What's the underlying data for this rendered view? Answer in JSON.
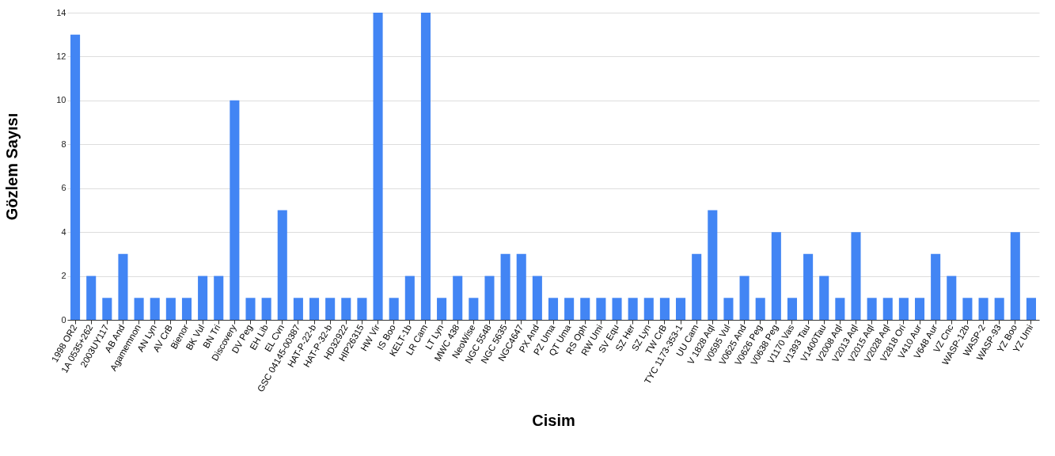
{
  "chart_data": {
    "type": "bar",
    "xlabel": "Cisim",
    "ylabel": "Gözlem Sayısı",
    "categories": [
      "1998 OR2",
      "1A 0535+262",
      "2003UY117",
      "AB And",
      "Agamemnon",
      "AN Lyn",
      "AV CrB",
      "Bienor",
      "BK Vul",
      "BN Tri",
      "Discovery",
      "DV Peg",
      "EH Lib",
      "EL Cvn",
      "GSC 04145-00387",
      "HAT-P-22-b",
      "HAT-P-32-b",
      "HD32922",
      "HIP26315",
      "HW Vir",
      "IS Boo",
      "KELT-1b",
      "LR Cam",
      "LT Lyn",
      "MWC 438",
      "NeoWise",
      "NGC 5548",
      "NGC 5635",
      "NGC4647",
      "PX And",
      "PZ Uma",
      "QT Uma",
      "RS Oph",
      "RW Umi",
      "SV Equ",
      "SZ Her",
      "SZ Lyn",
      "TW CrB",
      "TYC 1173-353-1",
      "UU Cam",
      "V 1828 Aql",
      "V0595 Vul",
      "V0625 And",
      "V0626 Peg",
      "V0638 Peg",
      "V1170 Vas",
      "V1393 Tau",
      "V1400Tau",
      "V2008 Aql",
      "V2013 Aql",
      "V2015 Aql",
      "V2028 Aql",
      "V2818 Ori",
      "V410 Aur",
      "V648 Aur",
      "VZ Cnc",
      "WASP-12b",
      "WASP-2",
      "WASP-93",
      "YZ Boo",
      "YZ Umi"
    ],
    "values": [
      13,
      2,
      1,
      3,
      1,
      1,
      1,
      1,
      2,
      2,
      10,
      1,
      1,
      5,
      1,
      1,
      1,
      1,
      1,
      14,
      1,
      2,
      14,
      1,
      2,
      1,
      2,
      3,
      3,
      2,
      1,
      1,
      1,
      1,
      1,
      1,
      1,
      1,
      1,
      3,
      5,
      1,
      2,
      1,
      4,
      1,
      3,
      2,
      1,
      4,
      1,
      1,
      1,
      1,
      3,
      2,
      1,
      1,
      1,
      4,
      1
    ],
    "color": "#4285f4",
    "ylim": [
      0,
      14
    ],
    "yticks": [
      0,
      2,
      4,
      6,
      8,
      10,
      12,
      14
    ],
    "grid": "y"
  }
}
